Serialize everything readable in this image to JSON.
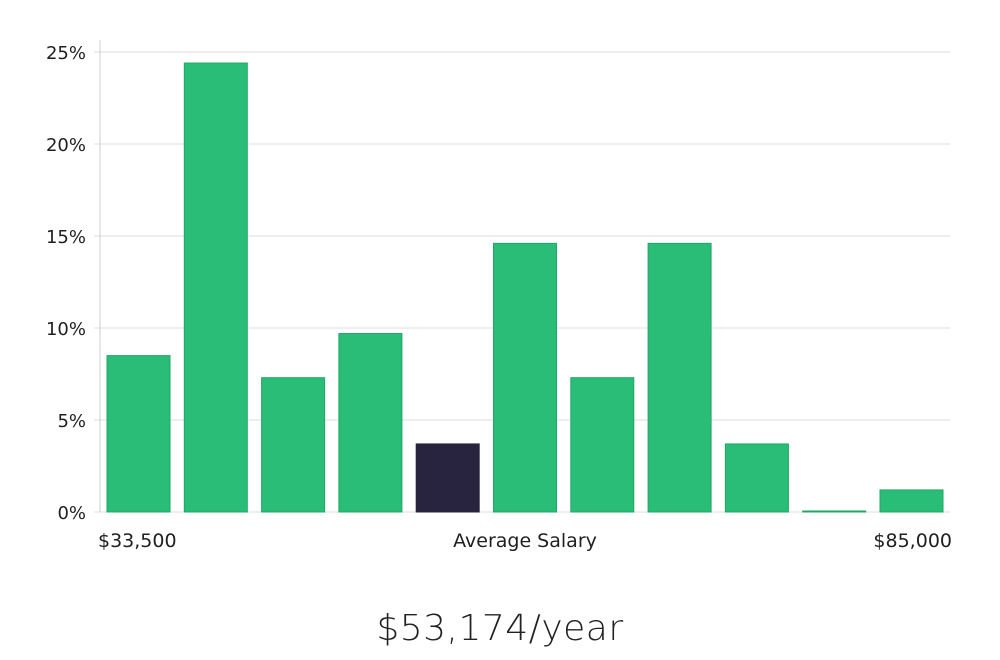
{
  "chart_data": {
    "type": "bar",
    "xlabel": "Average Salary",
    "x_range_labels": [
      "$33,500",
      "$85,000"
    ],
    "ylim": [
      0,
      25
    ],
    "yticks": [
      0,
      5,
      10,
      15,
      20,
      25
    ],
    "ytick_labels": [
      "0%",
      "5%",
      "10%",
      "15%",
      "20%",
      "25%"
    ],
    "grid": true,
    "values": [
      8.5,
      24.4,
      7.3,
      9.7,
      3.7,
      14.6,
      7.3,
      14.6,
      3.7,
      0.05,
      1.2
    ],
    "highlight_index": 4,
    "colors": {
      "bar": "#2abd77",
      "bar_border": "#1fa865",
      "highlight": "#28243f",
      "grid": "#dddddd",
      "axis": "#cccccc"
    }
  },
  "salary_label": "$53,174/year"
}
